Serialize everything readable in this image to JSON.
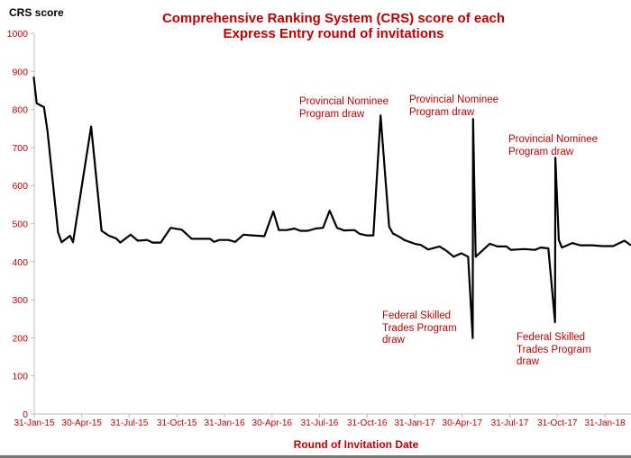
{
  "chart_data": {
    "type": "line",
    "title": [
      "Comprehensive Ranking System (CRS) score of each",
      "Express Entry round of invitations"
    ],
    "ylabel": "CRS score",
    "xlabel": "Round of Invitation Date",
    "ylim": [
      0,
      1000
    ],
    "yticks": [
      0,
      100,
      200,
      300,
      400,
      500,
      600,
      700,
      800,
      900,
      1000
    ],
    "xlim": [
      2015.083,
      2018.22
    ],
    "xtick_labels": [
      "31-Jan-15",
      "30-Apr-15",
      "31-Jul-15",
      "31-Oct-15",
      "31-Jan-16",
      "30-Apr-16",
      "31-Jul-16",
      "31-Oct-16",
      "31-Jan-17",
      "30-Apr-17",
      "31-Jul-17",
      "31-Oct-17",
      "31-Jan-18"
    ],
    "xtick_values": [
      2015.083,
      2015.333,
      2015.583,
      2015.833,
      2016.083,
      2016.333,
      2016.583,
      2016.833,
      2017.083,
      2017.333,
      2017.583,
      2017.833,
      2018.083
    ],
    "grid": false,
    "line_color": "#000000",
    "text_color": "#c00000",
    "series": [
      {
        "name": "CRS score",
        "x": [
          2015.08,
          2015.096,
          2015.134,
          2015.153,
          2015.208,
          2015.227,
          2015.271,
          2015.287,
          2015.382,
          2015.437,
          2015.476,
          2015.514,
          2015.535,
          2015.59,
          2015.627,
          2015.677,
          2015.705,
          2015.748,
          2015.8,
          2015.859,
          2015.911,
          2016.007,
          2016.028,
          2016.056,
          2016.103,
          2016.14,
          2016.183,
          2016.23,
          2016.293,
          2016.34,
          2016.369,
          2016.411,
          2016.451,
          2016.482,
          2016.522,
          2016.562,
          2016.601,
          2016.636,
          2016.675,
          2016.712,
          2016.767,
          2016.794,
          2016.83,
          2016.866,
          2016.904,
          2016.949,
          2016.969,
          2017.004,
          2017.028,
          2017.083,
          2017.115,
          2017.154,
          2017.214,
          2017.249,
          2017.288,
          2017.328,
          2017.364,
          2017.388,
          2017.39,
          2017.404,
          2017.439,
          2017.478,
          2017.518,
          2017.565,
          2017.589,
          2017.66,
          2017.715,
          2017.746,
          2017.786,
          2017.821,
          2017.823,
          2017.841,
          2017.857,
          2017.912,
          2017.952,
          2018.015,
          2018.07,
          2018.126,
          2018.186,
          2018.22
        ],
        "y": [
          886,
          816,
          806,
          741,
          477,
          451,
          468,
          451,
          755,
          481,
          468,
          461,
          450,
          471,
          455,
          457,
          450,
          450,
          489,
          484,
          460,
          460,
          452,
          457,
          457,
          452,
          471,
          469,
          467,
          532,
          483,
          483,
          487,
          481,
          481,
          487,
          489,
          534,
          489,
          482,
          483,
          473,
          469,
          469,
          784,
          492,
          474,
          465,
          457,
          447,
          444,
          432,
          440,
          429,
          413,
          422,
          413,
          199,
          775,
          413,
          429,
          447,
          440,
          440,
          431,
          433,
          431,
          437,
          435,
          241,
          673,
          457,
          437,
          449,
          443,
          443,
          441,
          441,
          455,
          443
        ]
      }
    ],
    "annotations": [
      {
        "lines": [
          "Provincial Nominee",
          "Program draw"
        ]
      },
      {
        "lines": [
          "Provincial Nominee",
          "Program draw"
        ]
      },
      {
        "lines": [
          "Provincial Nominee",
          "Program draw"
        ]
      },
      {
        "lines": [
          "Federal Skilled",
          "Trades Program",
          "draw"
        ]
      },
      {
        "lines": [
          "Federal Skilled",
          "Trades Program",
          "draw"
        ]
      }
    ]
  }
}
